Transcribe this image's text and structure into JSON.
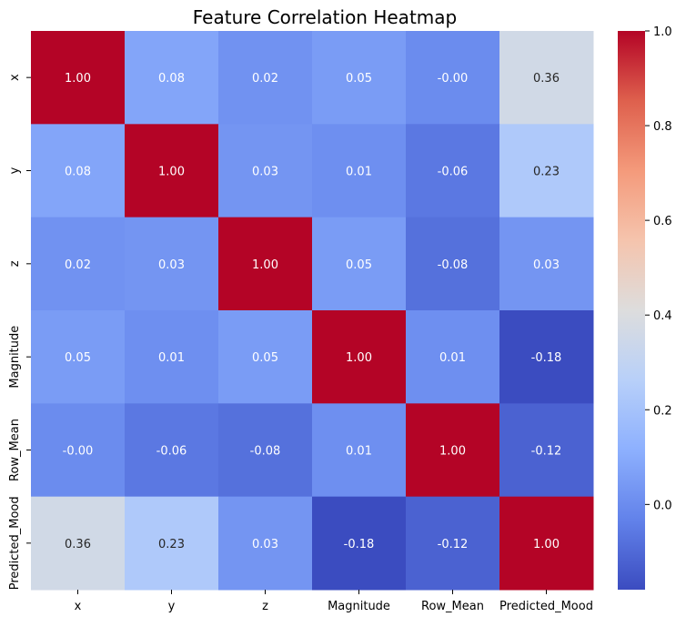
{
  "chart_data": {
    "type": "heatmap",
    "title": "Feature Correlation Heatmap",
    "xlabel": "",
    "ylabel": "",
    "categories": [
      "x",
      "y",
      "z",
      "Magnitude",
      "Row_Mean",
      "Predicted_Mood"
    ],
    "values": [
      [
        1.0,
        0.08,
        0.02,
        0.05,
        -0.0,
        0.36
      ],
      [
        0.08,
        1.0,
        0.03,
        0.01,
        -0.06,
        0.23
      ],
      [
        0.02,
        0.03,
        1.0,
        0.05,
        -0.08,
        0.03
      ],
      [
        0.05,
        0.01,
        0.05,
        1.0,
        0.01,
        -0.18
      ],
      [
        -0.0,
        -0.06,
        -0.08,
        0.01,
        1.0,
        -0.12
      ],
      [
        0.36,
        0.23,
        0.03,
        -0.18,
        -0.12,
        1.0
      ]
    ],
    "annotations": [
      [
        "1.00",
        "0.08",
        "0.02",
        "0.05",
        "-0.00",
        "0.36"
      ],
      [
        "0.08",
        "1.00",
        "0.03",
        "0.01",
        "-0.06",
        "0.23"
      ],
      [
        "0.02",
        "0.03",
        "1.00",
        "0.05",
        "-0.08",
        "0.03"
      ],
      [
        "0.05",
        "0.01",
        "0.05",
        "1.00",
        "0.01",
        "-0.18"
      ],
      [
        "-0.00",
        "-0.06",
        "-0.08",
        "0.01",
        "1.00",
        "-0.12"
      ],
      [
        "0.36",
        "0.23",
        "0.03",
        "-0.18",
        "-0.12",
        "1.00"
      ]
    ],
    "colormap": "coolwarm",
    "vmin": -0.18,
    "vmax": 1.0,
    "colorbar_ticks": [
      0.0,
      0.2,
      0.4,
      0.6,
      0.8,
      1.0
    ],
    "colorbar_tick_labels": [
      "0.0",
      "0.2",
      "0.4",
      "0.6",
      "0.8",
      "1.0"
    ],
    "grid": false,
    "legend": "colorbar-right"
  }
}
